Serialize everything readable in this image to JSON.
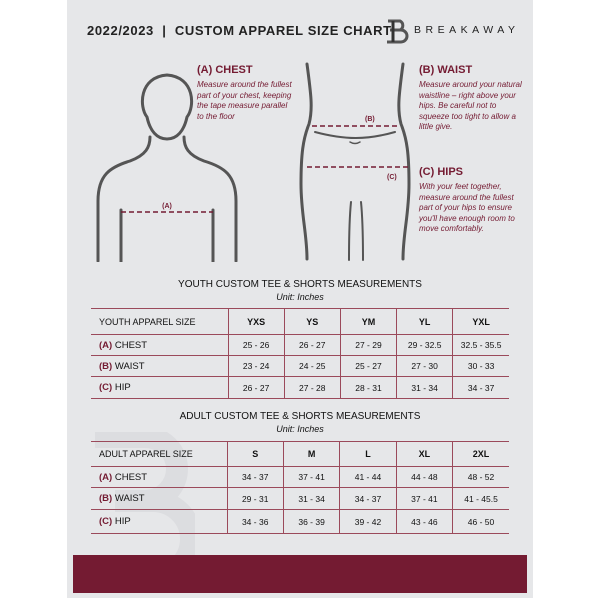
{
  "header": {
    "title": "2022/2023  |  CUSTOM APPAREL SIZE CHART",
    "brand": "BREAKAWAY",
    "logo_letter": "B"
  },
  "guide": {
    "chest": {
      "heading": "(A) CHEST",
      "text": "Measure around the fullest part of your chest, keeping the tape measure parallel to the floor",
      "marker": "(A)"
    },
    "waist": {
      "heading": "(B) WAIST",
      "text": "Measure around your natural waistline – right above your hips. Be careful not to squeeze too tight to allow a little give.",
      "marker": "(B)"
    },
    "hips": {
      "heading": "(C) HIPS",
      "text": "With your feet together, measure around the fullest part of your hips to ensure you'll have enough room to move comfortably.",
      "marker": "(C)"
    }
  },
  "youth": {
    "heading": "YOUTH CUSTOM TEE & SHORTS MEASUREMENTS",
    "unit": "Unit: Inches",
    "header": [
      "YOUTH APPAREL SIZE",
      "YXS",
      "YS",
      "YM",
      "YL",
      "YXL"
    ],
    "rows": [
      {
        "tag": "(A)",
        "name": "CHEST",
        "values": [
          "25 - 26",
          "26 - 27",
          "27 - 29",
          "29 - 32.5",
          "32.5 - 35.5"
        ]
      },
      {
        "tag": "(B)",
        "name": "WAIST",
        "values": [
          "23 - 24",
          "24 - 25",
          "25 - 27",
          "27 - 30",
          "30 - 33"
        ]
      },
      {
        "tag": "(C)",
        "name": "HIP",
        "values": [
          "26 - 27",
          "27 - 28",
          "28 - 31",
          "31 - 34",
          "34 - 37"
        ]
      }
    ]
  },
  "adult": {
    "heading": "ADULT CUSTOM TEE & SHORTS MEASUREMENTS",
    "unit": "Unit: Inches",
    "header": [
      "ADULT APPAREL SIZE",
      "S",
      "M",
      "L",
      "XL",
      "2XL"
    ],
    "rows": [
      {
        "tag": "(A)",
        "name": "CHEST",
        "values": [
          "34 - 37",
          "37 - 41",
          "41 - 44",
          "44 - 48",
          "48 - 52"
        ]
      },
      {
        "tag": "(B)",
        "name": "WAIST",
        "values": [
          "29 - 31",
          "31 - 34",
          "34 - 37",
          "37 - 41",
          "41 - 45.5"
        ]
      },
      {
        "tag": "(C)",
        "name": "HIP",
        "values": [
          "34 - 36",
          "36 - 39",
          "39 - 42",
          "43 - 46",
          "46 - 50"
        ]
      }
    ]
  },
  "colors": {
    "accent": "#741b32",
    "background": "#e6e7e9"
  }
}
